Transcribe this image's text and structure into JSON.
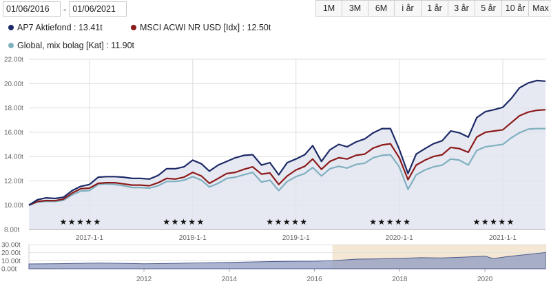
{
  "date_range": {
    "from": "01/06/2016",
    "separator": "-",
    "to": "01/06/2021"
  },
  "range_buttons": [
    {
      "label": "1M",
      "active": false
    },
    {
      "label": "3M",
      "active": false
    },
    {
      "label": "6M",
      "active": false
    },
    {
      "label": "i år",
      "active": false
    },
    {
      "label": "1 år",
      "active": false
    },
    {
      "label": "3 år",
      "active": false
    },
    {
      "label": "5 år",
      "active": true
    },
    {
      "label": "10 år",
      "active": false
    },
    {
      "label": "Max",
      "active": false
    }
  ],
  "legend": [
    {
      "label": "AP7 Aktiefond : 13.41t",
      "color": "#1c2a66"
    },
    {
      "label": "MSCI ACWI NR USD [Idx] : 12.50t",
      "color": "#8b1a1a"
    },
    {
      "label": "Global, mix bolag [Kat] : 11.90t",
      "color": "#7fb0c0"
    }
  ],
  "chart_data": {
    "type": "line",
    "x_start": "2016-06-01",
    "x_end": "2021-06-01",
    "y_ticks": [
      "22.00t",
      "20.00t",
      "18.00t",
      "16.00t",
      "14.00t",
      "12.00t",
      "10.00t",
      "8.00t"
    ],
    "ylim": [
      8000,
      22000
    ],
    "x_ticks": [
      {
        "date": "2017-01-01",
        "label": "2017-1-1"
      },
      {
        "date": "2018-01-01",
        "label": "2018-1-1"
      },
      {
        "date": "2019-01-01",
        "label": "2019-1-1"
      },
      {
        "date": "2020-01-01",
        "label": "2020-1-1"
      },
      {
        "date": "2021-01-01",
        "label": "2021-1-1"
      }
    ],
    "rating_stars": "★★★★★",
    "rating_dates": [
      "2016-12-01",
      "2017-12-01",
      "2018-12-01",
      "2019-12-01",
      "2020-12-01"
    ],
    "dates": [
      "2016-06-01",
      "2016-07-01",
      "2016-08-01",
      "2016-09-01",
      "2016-10-01",
      "2016-11-01",
      "2016-12-01",
      "2017-01-01",
      "2017-02-01",
      "2017-03-01",
      "2017-04-01",
      "2017-05-01",
      "2017-06-01",
      "2017-07-01",
      "2017-08-01",
      "2017-09-01",
      "2017-10-01",
      "2017-11-01",
      "2017-12-01",
      "2018-01-01",
      "2018-02-01",
      "2018-03-01",
      "2018-04-01",
      "2018-05-01",
      "2018-06-01",
      "2018-07-01",
      "2018-08-01",
      "2018-09-01",
      "2018-10-01",
      "2018-11-01",
      "2018-12-01",
      "2019-01-01",
      "2019-02-01",
      "2019-03-01",
      "2019-04-01",
      "2019-05-01",
      "2019-06-01",
      "2019-07-01",
      "2019-08-01",
      "2019-09-01",
      "2019-10-01",
      "2019-11-01",
      "2019-12-01",
      "2020-01-01",
      "2020-02-01",
      "2020-03-01",
      "2020-04-01",
      "2020-05-01",
      "2020-06-01",
      "2020-07-01",
      "2020-08-01",
      "2020-09-01",
      "2020-10-01",
      "2020-11-01",
      "2020-12-01",
      "2021-01-01",
      "2021-02-01",
      "2021-03-01",
      "2021-04-01",
      "2021-05-01",
      "2021-06-01"
    ],
    "series": [
      {
        "name": "AP7 Aktiefond",
        "color": "#1c2a66",
        "values": [
          10000,
          10450,
          10600,
          10550,
          10650,
          11200,
          11550,
          11700,
          12300,
          12350,
          12350,
          12300,
          12200,
          12200,
          12150,
          12450,
          13000,
          13000,
          13150,
          13700,
          13400,
          12800,
          13300,
          13600,
          13900,
          14100,
          14150,
          13300,
          13500,
          12500,
          13500,
          13800,
          14150,
          14900,
          13600,
          14550,
          15000,
          14800,
          15200,
          15450,
          15950,
          16300,
          16300,
          14600,
          12600,
          14200,
          14650,
          15050,
          15300,
          16100,
          15950,
          15600,
          17200,
          17700,
          17850,
          18050,
          18800,
          19650,
          20050,
          20250,
          20200
        ]
      },
      {
        "name": "MSCI ACWI NR USD [Idx]",
        "color": "#8b1a1a",
        "values": [
          10000,
          10300,
          10380,
          10370,
          10500,
          11000,
          11350,
          11400,
          11800,
          11850,
          11850,
          11750,
          11650,
          11650,
          11600,
          11850,
          12200,
          12150,
          12300,
          12700,
          12400,
          11800,
          12200,
          12600,
          12700,
          12950,
          13150,
          12550,
          12650,
          11700,
          12400,
          12900,
          13200,
          13800,
          12950,
          13600,
          13900,
          13800,
          14100,
          14200,
          14700,
          14950,
          15050,
          13900,
          12100,
          13300,
          13700,
          14000,
          14150,
          14750,
          14650,
          14350,
          15600,
          16000,
          16100,
          16200,
          16800,
          17350,
          17650,
          17800,
          17850
        ]
      },
      {
        "name": "Global, mix bolag [Kat]",
        "color": "#7fb0c0",
        "values": [
          10000,
          10250,
          10320,
          10300,
          10400,
          10850,
          11150,
          11200,
          11700,
          11750,
          11700,
          11600,
          11450,
          11450,
          11400,
          11600,
          11950,
          11950,
          12050,
          12350,
          12050,
          11500,
          11800,
          12200,
          12300,
          12500,
          12700,
          11900,
          12050,
          11200,
          11950,
          12350,
          12600,
          13100,
          12400,
          13000,
          13200,
          13050,
          13350,
          13450,
          13900,
          14100,
          14150,
          13150,
          11300,
          12500,
          12900,
          13150,
          13300,
          13800,
          13700,
          13300,
          14500,
          14800,
          14900,
          15000,
          15550,
          15950,
          16250,
          16300,
          16300
        ]
      }
    ]
  },
  "navigator": {
    "y_ticks": [
      "30.00t",
      "20.00t",
      "10.00t",
      "0.00t"
    ],
    "ylim": [
      0,
      30000
    ],
    "x_ticks": [
      "2012",
      "2014",
      "2016",
      "2018",
      "2020"
    ],
    "x_tick_years": [
      2012,
      2014,
      2016,
      2018,
      2020
    ],
    "x_start_year": 2009.3,
    "x_end_year": 2021.42,
    "selection_start_year": 2016.42,
    "years": [
      2009.3,
      2010,
      2010.5,
      2011,
      2011.5,
      2012,
      2012.5,
      2013,
      2013.5,
      2014,
      2014.5,
      2015,
      2015.5,
      2016,
      2016.42,
      2017,
      2017.5,
      2018,
      2018.5,
      2019,
      2019.5,
      2020,
      2020.2,
      2020.5,
      2021,
      2021.42
    ],
    "values": [
      6000,
      6300,
      6800,
      7200,
      6800,
      6200,
      6500,
      7000,
      7500,
      8000,
      8500,
      9000,
      9300,
      9400,
      10000,
      12000,
      12300,
      12900,
      13800,
      13500,
      14500,
      15800,
      12600,
      15000,
      17800,
      20200
    ]
  }
}
